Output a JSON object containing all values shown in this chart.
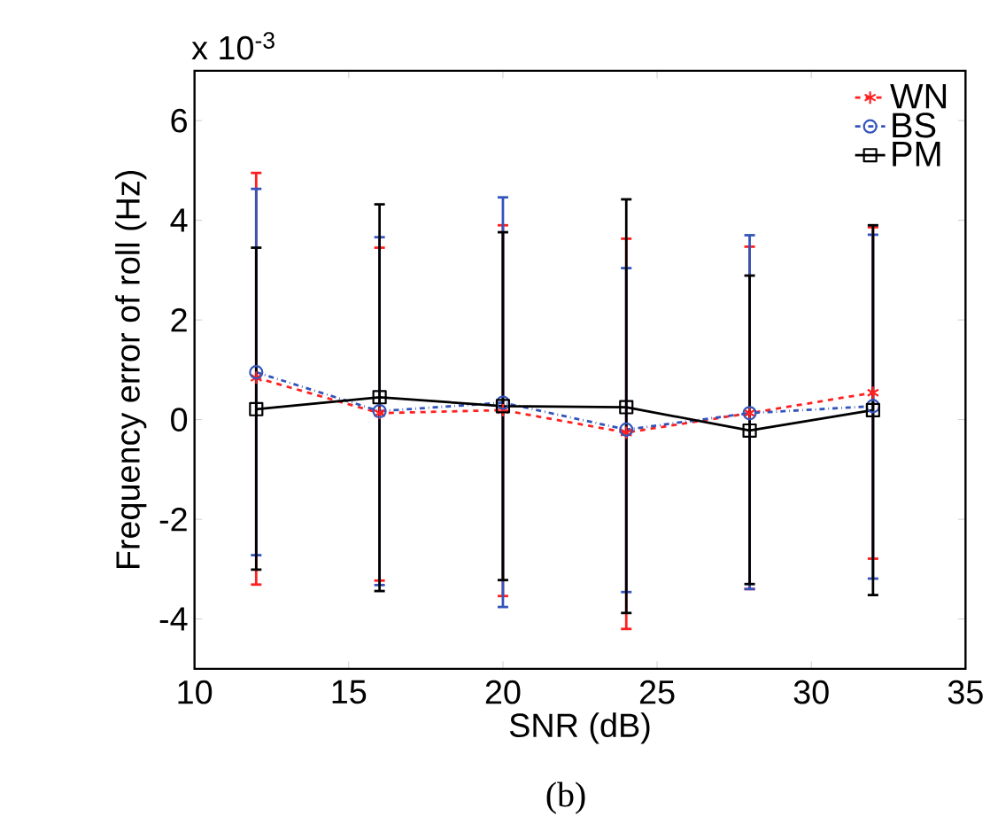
{
  "chart_data": {
    "type": "line",
    "xlabel": "SNR (dB)",
    "ylabel": "Frequency error of roll (Hz)",
    "annotations": [
      "x 10$^{-3}$",
      "(b)"
    ],
    "x": [
      12,
      16,
      20,
      24,
      28,
      32
    ],
    "xlim": [
      10,
      35
    ],
    "xticks": [
      10,
      15,
      20,
      25,
      30,
      35
    ],
    "ylim": [
      -5,
      7
    ],
    "yticks": [
      -4,
      -2,
      0,
      2,
      4,
      6
    ],
    "grid": false,
    "legend": "top right",
    "series": [
      {
        "name": "WN",
        "color": "#ff2020",
        "marker": "cross",
        "line_style": "dashed",
        "values": [
          0.84,
          0.13,
          0.19,
          -0.26,
          0.13,
          0.54
        ],
        "errors": [
          [
            -3.31,
            4.95
          ],
          [
            -3.23,
            3.45
          ],
          [
            -3.54,
            3.9
          ],
          [
            -4.2,
            3.63
          ],
          [
            -3.4,
            3.47
          ],
          [
            -2.79,
            3.86
          ]
        ]
      },
      {
        "name": "BS",
        "color": "#3355bb",
        "marker": "circle",
        "line_style": "dashdot",
        "values": [
          0.95,
          0.17,
          0.34,
          -0.2,
          0.13,
          0.27
        ],
        "errors": [
          [
            -2.72,
            4.63
          ],
          [
            -3.32,
            3.66
          ],
          [
            -3.76,
            4.46
          ],
          [
            -3.46,
            3.04
          ],
          [
            -3.4,
            3.7
          ],
          [
            -3.19,
            3.71
          ]
        ]
      },
      {
        "name": "PM",
        "color": "#000000",
        "marker": "square",
        "line_style": "solid",
        "values": [
          0.21,
          0.45,
          0.27,
          0.25,
          -0.22,
          0.19
        ],
        "errors": [
          [
            -3.01,
            3.45
          ],
          [
            -3.44,
            4.32
          ],
          [
            -3.22,
            3.76
          ],
          [
            -3.88,
            4.42
          ],
          [
            -3.3,
            2.89
          ],
          [
            -3.52,
            3.9
          ]
        ]
      }
    ]
  }
}
